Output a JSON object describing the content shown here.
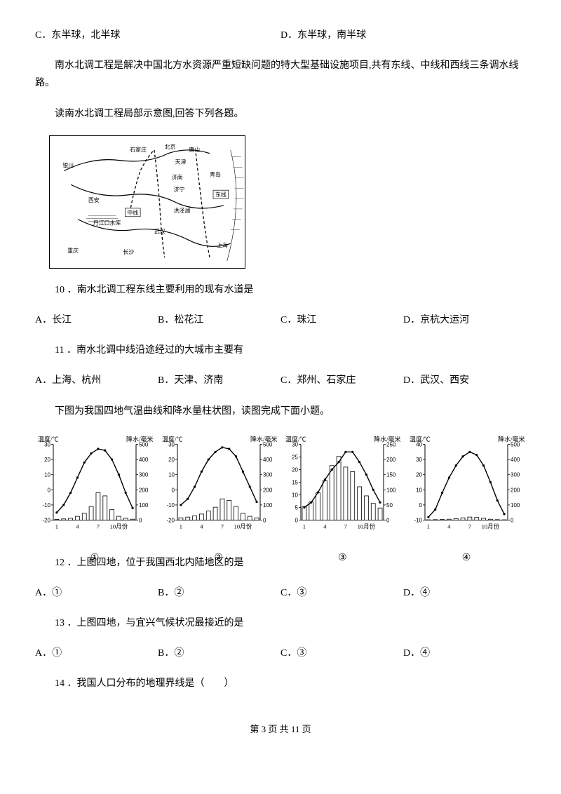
{
  "topOptions": {
    "c": "C．东半球，北半球",
    "d": "D．东半球，南半球"
  },
  "intro1": "南水北调工程是解决中国北方水资源严重短缺问题的特大型基础设施项目,共有东线、中线和西线三条调水线路。",
  "intro2": "读南水北调工程局部示意图,回答下列各题。",
  "map": {
    "labels": [
      "石家庄",
      "北京",
      "唐山",
      "天津",
      "银川",
      "西安",
      "济南",
      "济宁",
      "青岛",
      "中线",
      "丹江口水库",
      "洪泽湖",
      "武汉",
      "重庆",
      "长沙",
      "东线",
      "上海"
    ],
    "line_color": "#000000",
    "bg": "#ffffff"
  },
  "q10": {
    "text": "10 ．南水北调工程东线主要利用的现有水道是",
    "a": "A．长江",
    "b": "B．松花江",
    "c": "C．珠江",
    "d": "D．京杭大运河"
  },
  "q11": {
    "text": "11 ．南水北调中线沿途经过的大城市主要有",
    "a": "A．上海、杭州",
    "b": "B．天津、济南",
    "c": "C．郑州、石家庄",
    "d": "D．武汉、西安"
  },
  "intro3": "下图为我国四地气温曲线和降水量柱状图，读图完成下面小题。",
  "charts": {
    "y1_label": "温度/℃",
    "y2_label": "降水/毫米",
    "x_month_labels": [
      "1",
      "4",
      "7",
      "10月份"
    ],
    "y1_ticks_a": [
      -20,
      -10,
      0,
      10,
      20,
      30
    ],
    "y1_ticks_c": [
      0,
      5,
      10,
      15,
      20,
      25,
      30
    ],
    "y1_ticks_d": [
      -10,
      0,
      10,
      20,
      30,
      40
    ],
    "y2_ticks_a": [
      0,
      100,
      200,
      300,
      400,
      500
    ],
    "y2_ticks_c": [
      0,
      50,
      100,
      150,
      200,
      250
    ],
    "line_color": "#000000",
    "bar_color": "#ffffff",
    "bar_stroke": "#000000",
    "grid_color": "#999999",
    "bg": "#ffffff",
    "chart1": {
      "num": "①",
      "temps": [
        -15,
        -10,
        -2,
        8,
        18,
        24,
        27,
        26,
        20,
        10,
        -2,
        -12
      ],
      "precip": [
        5,
        8,
        12,
        25,
        45,
        90,
        180,
        160,
        70,
        25,
        12,
        6
      ]
    },
    "chart2": {
      "num": "②",
      "temps": [
        -10,
        -6,
        2,
        12,
        20,
        25,
        28,
        27,
        22,
        12,
        2,
        -8
      ],
      "precip": [
        15,
        20,
        28,
        40,
        60,
        85,
        140,
        130,
        90,
        45,
        25,
        15
      ]
    },
    "chart3": {
      "num": "③",
      "temps": [
        5,
        7,
        11,
        16,
        20,
        23,
        27,
        27,
        23,
        18,
        12,
        7
      ],
      "precip": [
        45,
        60,
        90,
        130,
        180,
        210,
        175,
        160,
        110,
        80,
        55,
        40
      ]
    },
    "chart4": {
      "num": "④",
      "temps": [
        -8,
        -3,
        8,
        18,
        26,
        32,
        35,
        33,
        26,
        15,
        3,
        -6
      ],
      "precip": [
        2,
        3,
        4,
        6,
        10,
        15,
        20,
        18,
        12,
        6,
        3,
        2
      ]
    }
  },
  "q12": {
    "text": "12 ．上图四地，位于我国西北内陆地区的是",
    "a": "A．①",
    "b": "B．②",
    "c": "C．③",
    "d": "D．④"
  },
  "q13": {
    "text": "13 ．上图四地，与宜兴气候状况最接近的是",
    "a": "A．①",
    "b": "B．②",
    "c": "C．③",
    "d": "D．④"
  },
  "q14": {
    "text": "14 ．我国人口分布的地理界线是（　　）"
  },
  "footer": "第 3 页 共 11 页"
}
